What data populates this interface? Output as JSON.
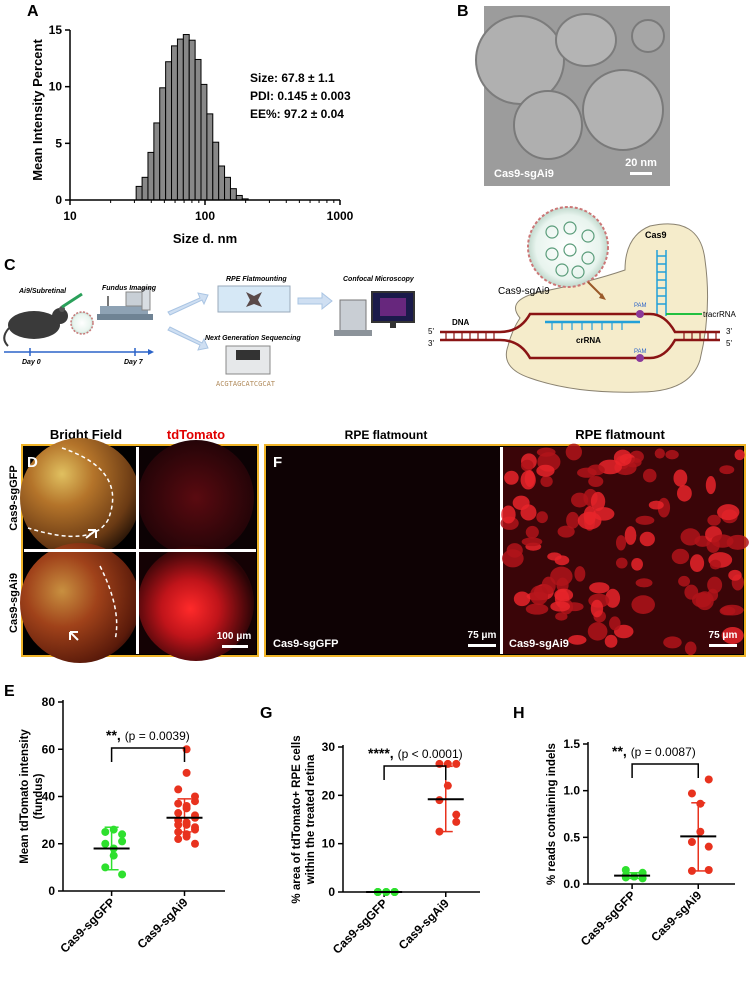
{
  "panel_letters": {
    "a": "A",
    "b": "B",
    "c": "C",
    "d": "D",
    "e": "E",
    "f": "F",
    "g": "G",
    "h": "H"
  },
  "panel_a": {
    "stats": [
      "Size: 67.8 ± 1.1",
      "PDI: 0.145 ± 0.003",
      "EE%: 97.2 ± 0.04"
    ]
  },
  "panel_b": {
    "sample_label": "Cas9-sgAi9",
    "scale_bar": "20 nm"
  },
  "panel_c": {
    "steps": {
      "injection": "Ai9/Subretinal",
      "fundus": "Fundus Imaging",
      "day0": "Day 0",
      "day7": "Day 7",
      "flatmount": "RPE Flatmounting",
      "confocal": "Confocal Microscopy",
      "ngs": "Next Generation Sequencing"
    },
    "mechanism": {
      "complex": "Cas9-sgAi9",
      "cas9": "Cas9",
      "pam_top": "PAM",
      "pam_bottom": "PAM",
      "tracr": "tracrRNA",
      "crrna": "crRNA",
      "dna": "DNA",
      "five_left": "5'",
      "three_left": "3'",
      "three_right": "3'",
      "five_right": "5'"
    }
  },
  "panel_d": {
    "col_bright": "Bright Field",
    "col_td": "tdTomato",
    "row_gfp": "Cas9-sgGFP",
    "row_ai9": "Cas9-sgAi9",
    "scale_bar": "100 μm"
  },
  "panel_f": {
    "title_left": "RPE flatmount",
    "title_right": "RPE flatmount",
    "label_left": "Cas9-sgGFP",
    "label_right": "Cas9-sgAi9",
    "scale_left": "75 μm",
    "scale_right": "75 μm"
  },
  "colors": {
    "gfp": "#2ee02e",
    "ai9": "#e8321e",
    "border": "#f0b429",
    "bar": "#888888"
  },
  "chart_data": [
    {
      "id": "A",
      "type": "bar",
      "xlabel": "Size d. nm",
      "ylabel": "Mean Intensity Percent",
      "xscale": "log",
      "xlim": [
        10,
        1000
      ],
      "ylim": [
        0,
        15
      ],
      "xticks": [
        10,
        100,
        1000
      ],
      "xtick_labels": [
        "10",
        "100",
        "1000"
      ],
      "yticks": [
        0,
        5,
        10,
        15
      ],
      "ytick_labels": [
        "0",
        "5",
        "10",
        "15"
      ],
      "bin_edges": [
        30.9,
        34.2,
        37.8,
        41.8,
        46.2,
        51.1,
        56.5,
        62.5,
        69.1,
        76.4,
        84.5,
        93.4,
        103.3,
        114.2,
        126.3,
        139.6,
        154.4,
        170.7,
        188.8,
        208.8
      ],
      "values": [
        1.2,
        2.0,
        4.2,
        6.8,
        9.9,
        12.2,
        13.6,
        14.2,
        14.6,
        14.1,
        12.4,
        10.2,
        7.6,
        5.1,
        3.0,
        2.0,
        1.0,
        0.4,
        0.1
      ]
    },
    {
      "id": "E",
      "type": "scatter",
      "ylabel": "Mean tdTomato intensity (fundus)",
      "categories": [
        "Cas9-sgGFP",
        "Cas9-sgAi9"
      ],
      "ylim": [
        0,
        80
      ],
      "yticks": [
        0,
        20,
        40,
        60,
        80
      ],
      "ytick_labels": [
        "0",
        "20",
        "40",
        "60",
        "80"
      ],
      "significance": "**",
      "p_text": "(p = 0.0039)",
      "series": [
        {
          "category": "Cas9-sgGFP",
          "mean": 18,
          "err_low": 9,
          "err_high": 27,
          "points": [
            7,
            10,
            15,
            18,
            20,
            21,
            24,
            25,
            26
          ]
        },
        {
          "category": "Cas9-sgAi9",
          "mean": 31,
          "err_low": 25,
          "err_high": 39,
          "points": [
            20,
            22,
            23,
            24,
            25,
            26,
            27,
            28,
            28,
            29,
            30,
            31,
            32,
            33,
            35,
            36,
            37,
            38,
            40,
            43,
            50,
            60
          ]
        }
      ]
    },
    {
      "id": "G",
      "type": "scatter",
      "ylabel": "% area of tdTomato+ RPE cells within the treated retina",
      "categories": [
        "Cas9-sgGFP",
        "Cas9-sgAi9"
      ],
      "ylim": [
        0,
        30
      ],
      "yticks": [
        0,
        10,
        20,
        30
      ],
      "ytick_labels": [
        "0",
        "10",
        "20",
        "30"
      ],
      "significance": "****",
      "p_text": "(p < 0.0001)",
      "series": [
        {
          "category": "Cas9-sgGFP",
          "mean": 0,
          "err_low": 0,
          "err_high": 0,
          "points": [
            0,
            0,
            0,
            0,
            0,
            0,
            0,
            0
          ]
        },
        {
          "category": "Cas9-sgAi9",
          "mean": 19.2,
          "err_low": 12.5,
          "err_high": 26,
          "points": [
            26.5,
            26.5,
            26.5,
            22,
            19,
            16,
            14.5,
            12.5
          ]
        }
      ]
    },
    {
      "id": "H",
      "type": "scatter",
      "ylabel": "% reads containing indels",
      "categories": [
        "Cas9-sgGFP",
        "Cas9-sgAi9"
      ],
      "ylim": [
        0,
        1.5
      ],
      "yticks": [
        0,
        0.5,
        1.0,
        1.5
      ],
      "ytick_labels": [
        "0.0",
        "0.5",
        "1.0",
        "1.5"
      ],
      "significance": "**",
      "p_text": "(p = 0.0087)",
      "series": [
        {
          "category": "Cas9-sgGFP",
          "mean": 0.09,
          "err_low": 0.06,
          "err_high": 0.12,
          "points": [
            0.06,
            0.07,
            0.08,
            0.08,
            0.09,
            0.1,
            0.12,
            0.15
          ]
        },
        {
          "category": "Cas9-sgAi9",
          "mean": 0.51,
          "err_low": 0.14,
          "err_high": 0.87,
          "points": [
            1.12,
            0.97,
            0.86,
            0.56,
            0.45,
            0.4,
            0.15,
            0.14
          ]
        }
      ]
    }
  ]
}
